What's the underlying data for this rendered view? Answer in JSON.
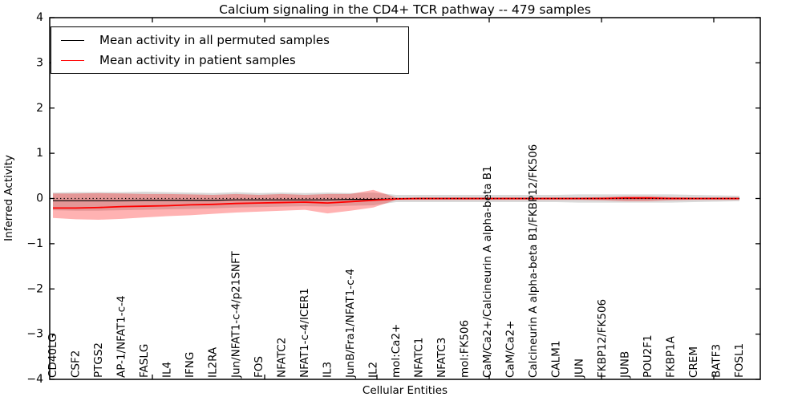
{
  "chart_data": {
    "type": "line",
    "title": "Calcium signaling in the CD4+ TCR pathway -- 479 samples",
    "xlabel": "Cellular Entities",
    "ylabel": "Inferred Activity",
    "ylim": [
      -4,
      4
    ],
    "yticks": [
      4,
      3,
      2,
      1,
      0,
      -1,
      -2,
      -3,
      -4
    ],
    "grid": false,
    "legend_position": "upper-left",
    "frame_color": "#000000",
    "background_color": "#ffffff",
    "baseline": {
      "y": 0,
      "style": "dotted",
      "color": "#000000"
    },
    "categories": [
      "CD40LG",
      "CSF2",
      "PTGS2",
      "AP-1/NFAT1-c-4",
      "FASLG",
      "IL4",
      "IFNG",
      "IL2RA",
      "Jun/NFAT1-c-4/p21SNFT",
      "FOS",
      "NFATC2",
      "NFAT1-c-4/ICER1",
      "IL3",
      "JunB/Fra1/NFAT1-c-4",
      "IL2",
      "mol:Ca2+",
      "NFATC1",
      "NFATC3",
      "mol:FK506",
      "CaM/Ca2+/Calcineurin A alpha-beta B1",
      "CaM/Ca2+",
      "Calcineurin A alpha-beta B1/FKBP12/FK506",
      "CALM1",
      "JUN",
      "FKBP12/FK506",
      "JUNB",
      "POU2F1",
      "FKBP1A",
      "CREM",
      "BATF3",
      "FOSL1"
    ],
    "series": [
      {
        "name": "Mean activity in all permuted samples",
        "color": "#000000",
        "line_width": 1.2,
        "values": [
          -0.05,
          -0.05,
          -0.05,
          -0.05,
          -0.04,
          -0.04,
          -0.04,
          -0.04,
          -0.03,
          -0.03,
          -0.03,
          -0.03,
          -0.03,
          -0.02,
          -0.02,
          -0.01,
          0,
          0,
          0,
          0,
          0,
          0,
          0,
          0,
          0,
          0,
          0,
          0,
          0,
          0,
          0
        ]
      },
      {
        "name": "Mean activity in patient samples",
        "color": "#ff0000",
        "line_width": 1.8,
        "values": [
          -0.21,
          -0.21,
          -0.2,
          -0.18,
          -0.17,
          -0.16,
          -0.14,
          -0.13,
          -0.11,
          -0.1,
          -0.09,
          -0.08,
          -0.1,
          -0.07,
          -0.04,
          -0.01,
          0,
          0,
          0,
          0,
          0,
          0,
          0,
          0,
          0,
          0.01,
          0.01,
          0,
          0,
          0,
          0
        ]
      }
    ],
    "bands": [
      {
        "name": "permuted-samples-std-band",
        "color": "#000000",
        "alpha": 0.15,
        "upper": [
          0.13,
          0.14,
          0.14,
          0.14,
          0.15,
          0.14,
          0.13,
          0.12,
          0.14,
          0.12,
          0.13,
          0.12,
          0.13,
          0.12,
          0.13,
          0.08,
          0.08,
          0.08,
          0.08,
          0.08,
          0.08,
          0.08,
          0.08,
          0.09,
          0.09,
          0.09,
          0.09,
          0.09,
          0.08,
          0.07,
          0.06
        ],
        "lower": [
          -0.26,
          -0.27,
          -0.27,
          -0.26,
          -0.25,
          -0.24,
          -0.23,
          -0.22,
          -0.2,
          -0.19,
          -0.18,
          -0.17,
          -0.18,
          -0.16,
          -0.15,
          -0.08,
          -0.08,
          -0.08,
          -0.08,
          -0.08,
          -0.08,
          -0.08,
          -0.08,
          -0.09,
          -0.09,
          -0.09,
          -0.09,
          -0.09,
          -0.08,
          -0.07,
          -0.06
        ]
      },
      {
        "name": "patient-samples-std-band",
        "color": "#ff0000",
        "alpha": 0.3,
        "upper": [
          0.11,
          0.11,
          0.12,
          0.11,
          0.1,
          0.1,
          0.09,
          0.08,
          0.1,
          0.08,
          0.1,
          0.08,
          0.1,
          0.1,
          0.19,
          0.02,
          0.02,
          0.02,
          0.02,
          0.02,
          0.02,
          0.02,
          0.02,
          0.02,
          0.03,
          0.05,
          0.05,
          0.03,
          0.02,
          0.02,
          0.02
        ],
        "lower": [
          -0.43,
          -0.46,
          -0.47,
          -0.45,
          -0.42,
          -0.39,
          -0.37,
          -0.34,
          -0.31,
          -0.29,
          -0.27,
          -0.25,
          -0.33,
          -0.27,
          -0.2,
          -0.03,
          -0.03,
          -0.03,
          -0.03,
          -0.03,
          -0.03,
          -0.03,
          -0.03,
          -0.03,
          -0.04,
          -0.06,
          -0.06,
          -0.04,
          -0.03,
          -0.03,
          -0.03
        ]
      }
    ]
  }
}
